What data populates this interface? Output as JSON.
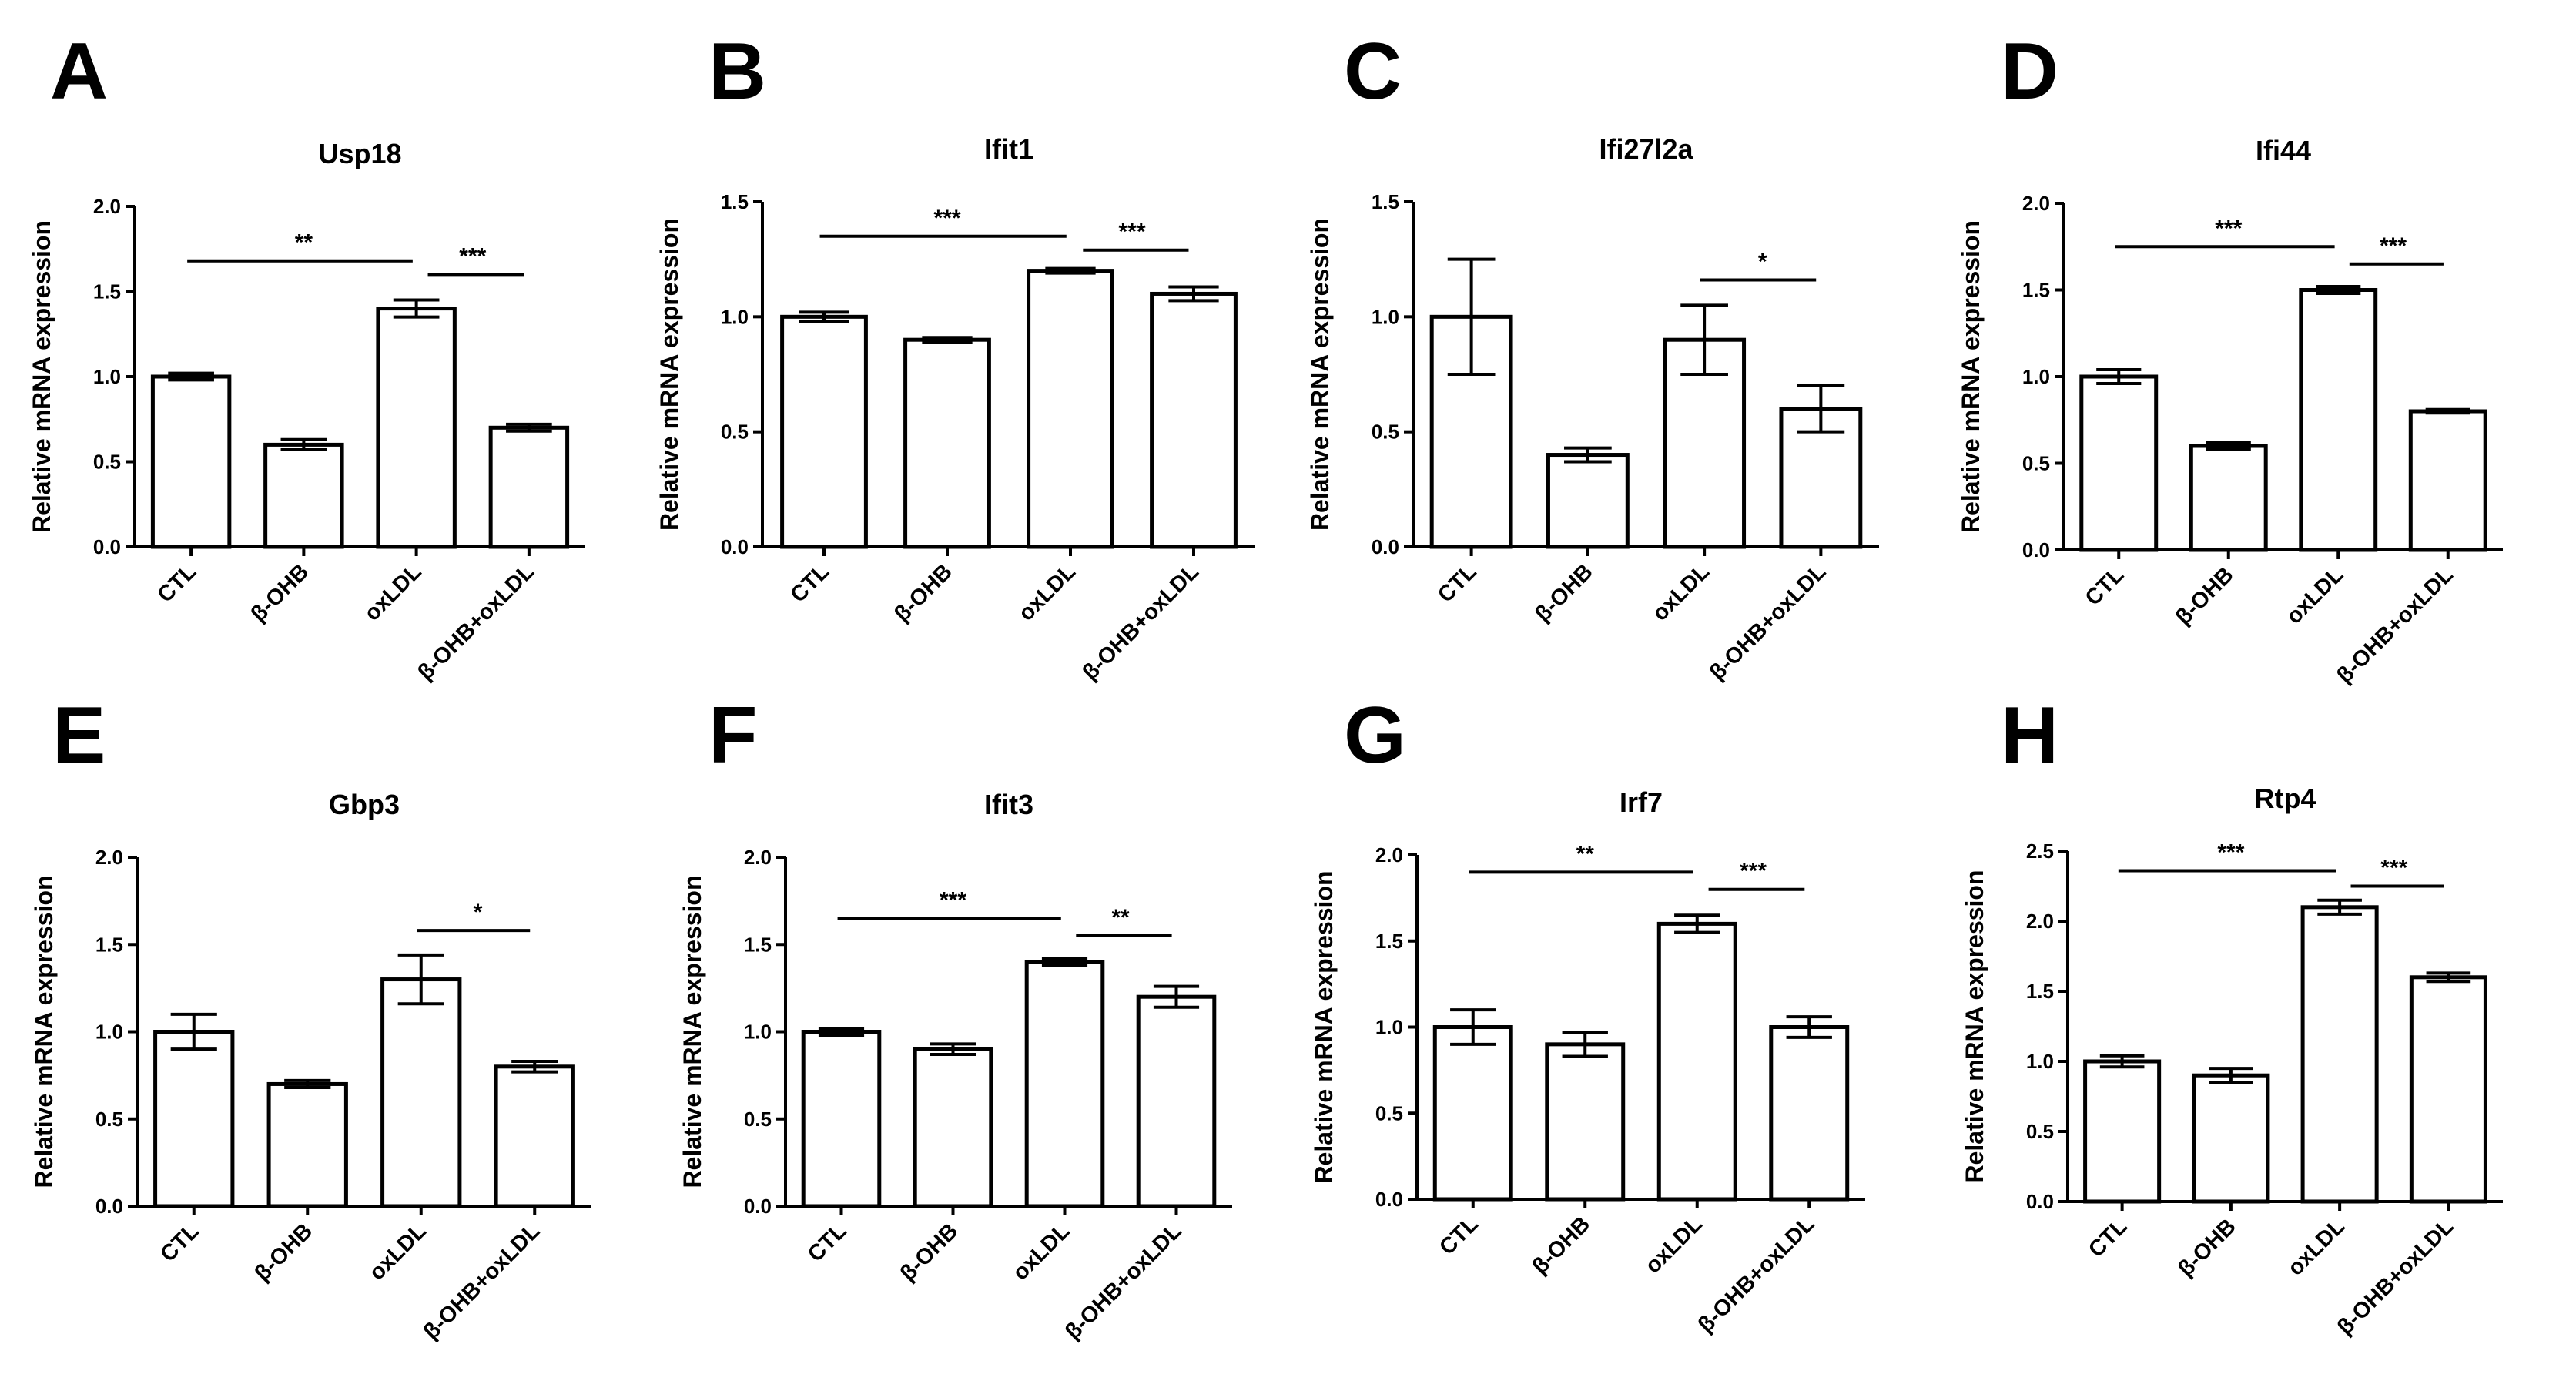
{
  "figure": {
    "panels": [
      "A",
      "B",
      "C",
      "D",
      "E",
      "F",
      "G",
      "H"
    ]
  },
  "chart_data": [
    {
      "panel": "A",
      "type": "bar",
      "title": "Usp18",
      "ylabel": "Relative mRNA expression",
      "xlabel": "",
      "categories": [
        "CTL",
        "β-OHB",
        "oxLDL",
        "β-OHB+oxLDL"
      ],
      "values": [
        1.0,
        0.6,
        1.4,
        0.7
      ],
      "errors": [
        0.02,
        0.03,
        0.05,
        0.02
      ],
      "ylim": [
        0,
        2.0
      ],
      "yticks": [
        "0.0",
        "0.5",
        "1.0",
        "1.5",
        "2.0"
      ],
      "significance": [
        {
          "from": 0,
          "to": 2,
          "label": "**",
          "y": 1.68
        },
        {
          "from": 2,
          "to": 3,
          "label": "***",
          "y": 1.6
        }
      ]
    },
    {
      "panel": "B",
      "type": "bar",
      "title": "Ifit1",
      "ylabel": "Relative mRNA expression",
      "xlabel": "",
      "categories": [
        "CTL",
        "β-OHB",
        "oxLDL",
        "β-OHB+oxLDL"
      ],
      "values": [
        1.0,
        0.9,
        1.2,
        1.1
      ],
      "errors": [
        0.02,
        0.01,
        0.01,
        0.03
      ],
      "ylim": [
        0,
        1.5
      ],
      "yticks": [
        "0.0",
        "0.5",
        "1.0",
        "1.5"
      ],
      "significance": [
        {
          "from": 0,
          "to": 2,
          "label": "***",
          "y": 1.35
        },
        {
          "from": 2,
          "to": 3,
          "label": "***",
          "y": 1.29
        }
      ]
    },
    {
      "panel": "C",
      "type": "bar",
      "title": "Ifi27l2a",
      "ylabel": "Relative mRNA expression",
      "xlabel": "",
      "categories": [
        "CTL",
        "β-OHB",
        "oxLDL",
        "β-OHB+oxLDL"
      ],
      "values": [
        1.0,
        0.4,
        0.9,
        0.6
      ],
      "errors": [
        0.25,
        0.03,
        0.15,
        0.1
      ],
      "ylim": [
        0,
        1.5
      ],
      "yticks": [
        "0.0",
        "0.5",
        "1.0",
        "1.5"
      ],
      "significance": [
        {
          "from": 2,
          "to": 3,
          "label": "*",
          "y": 1.16
        }
      ]
    },
    {
      "panel": "D",
      "type": "bar",
      "title": "Ifi44",
      "ylabel": "Relative mRNA expression",
      "xlabel": "",
      "categories": [
        "CTL",
        "β-OHB",
        "oxLDL",
        "β-OHB+oxLDL"
      ],
      "values": [
        1.0,
        0.6,
        1.5,
        0.8
      ],
      "errors": [
        0.04,
        0.02,
        0.02,
        0.01
      ],
      "ylim": [
        0,
        2.0
      ],
      "yticks": [
        "0.0",
        "0.5",
        "1.0",
        "1.5",
        "2.0"
      ],
      "significance": [
        {
          "from": 0,
          "to": 2,
          "label": "***",
          "y": 1.75
        },
        {
          "from": 2,
          "to": 3,
          "label": "***",
          "y": 1.65
        }
      ]
    },
    {
      "panel": "E",
      "type": "bar",
      "title": "Gbp3",
      "ylabel": "Relative mRNA expression",
      "xlabel": "",
      "categories": [
        "CTL",
        "β-OHB",
        "oxLDL",
        "β-OHB+oxLDL"
      ],
      "values": [
        1.0,
        0.7,
        1.3,
        0.8
      ],
      "errors": [
        0.1,
        0.02,
        0.14,
        0.03
      ],
      "ylim": [
        0,
        2.0
      ],
      "yticks": [
        "0.0",
        "0.5",
        "1.0",
        "1.5",
        "2.0"
      ],
      "significance": [
        {
          "from": 2,
          "to": 3,
          "label": "*",
          "y": 1.58
        }
      ]
    },
    {
      "panel": "F",
      "type": "bar",
      "title": "Ifit3",
      "ylabel": "Relative mRNA expression",
      "xlabel": "",
      "categories": [
        "CTL",
        "β-OHB",
        "oxLDL",
        "β-OHB+oxLDL"
      ],
      "values": [
        1.0,
        0.9,
        1.4,
        1.2
      ],
      "errors": [
        0.02,
        0.03,
        0.02,
        0.06
      ],
      "ylim": [
        0,
        2.0
      ],
      "yticks": [
        "0.0",
        "0.5",
        "1.0",
        "1.5",
        "2.0"
      ],
      "significance": [
        {
          "from": 0,
          "to": 2,
          "label": "***",
          "y": 1.65
        },
        {
          "from": 2,
          "to": 3,
          "label": "**",
          "y": 1.55
        }
      ]
    },
    {
      "panel": "G",
      "type": "bar",
      "title": "Irf7",
      "ylabel": "Relative mRNA expression",
      "xlabel": "",
      "categories": [
        "CTL",
        "β-OHB",
        "oxLDL",
        "β-OHB+oxLDL"
      ],
      "values": [
        1.0,
        0.9,
        1.6,
        1.0
      ],
      "errors": [
        0.1,
        0.07,
        0.05,
        0.06
      ],
      "ylim": [
        0,
        2.0
      ],
      "yticks": [
        "0.0",
        "0.5",
        "1.0",
        "1.5",
        "2.0"
      ],
      "significance": [
        {
          "from": 0,
          "to": 2,
          "label": "**",
          "y": 1.9
        },
        {
          "from": 2,
          "to": 3,
          "label": "***",
          "y": 1.8
        }
      ]
    },
    {
      "panel": "H",
      "type": "bar",
      "title": "Rtp4",
      "ylabel": "Relative mRNA expression",
      "xlabel": "",
      "categories": [
        "CTL",
        "β-OHB",
        "oxLDL",
        "β-OHB+oxLDL"
      ],
      "values": [
        1.0,
        0.9,
        2.1,
        1.6
      ],
      "errors": [
        0.04,
        0.05,
        0.05,
        0.03
      ],
      "ylim": [
        0,
        2.5
      ],
      "yticks": [
        "0.0",
        "0.5",
        "1.0",
        "1.5",
        "2.0",
        "2.5"
      ],
      "significance": [
        {
          "from": 0,
          "to": 2,
          "label": "***",
          "y": 2.36
        },
        {
          "from": 2,
          "to": 3,
          "label": "***",
          "y": 2.25
        }
      ]
    }
  ]
}
